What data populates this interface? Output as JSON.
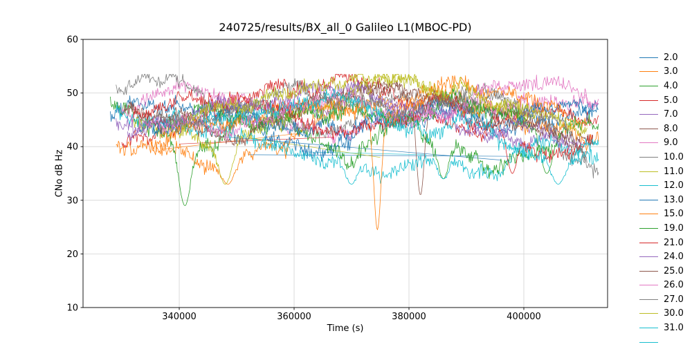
{
  "chart_data": {
    "type": "line",
    "title": "240725/results/BX_all_0 Galileo L1(MBOC-PD)",
    "xlabel": "Time (s)",
    "ylabel": "CNo dB Hz",
    "xlim": [
      323250,
      414580
    ],
    "ylim": [
      10,
      60
    ],
    "xticks": [
      340000,
      360000,
      380000,
      400000
    ],
    "yticks": [
      10,
      20,
      30,
      40,
      50,
      60
    ],
    "grid": true,
    "grid_color": "#d2d2d2",
    "axis_color": "#000000",
    "legend_position": "right-outside",
    "legend_partial_color": "#17becf",
    "series": [
      {
        "name": "2.0",
        "color": "#1f77b4",
        "x0": 328000,
        "x1": 413000,
        "noise": 1.6,
        "keypoints": [
          46,
          47,
          45,
          43,
          40,
          43,
          46,
          45,
          43,
          46
        ]
      },
      {
        "name": "3.0",
        "color": "#ff7f0e",
        "x0": 329000,
        "x1": 413000,
        "noise": 1.5,
        "keypoints": [
          41,
          39,
          37,
          40,
          44,
          47,
          49,
          47,
          44,
          42
        ],
        "dips": [
          [
            348500,
            33,
            1600
          ]
        ]
      },
      {
        "name": "4.0",
        "color": "#2ca02c",
        "x0": 328000,
        "x1": 405000,
        "noise": 1.8,
        "keypoints": [
          49,
          44,
          40,
          46,
          42,
          38,
          45,
          40,
          36,
          38
        ],
        "dips": [
          [
            341000,
            29,
            1500
          ],
          [
            386000,
            34,
            1200
          ]
        ]
      },
      {
        "name": "5.0",
        "color": "#d62728",
        "x0": 330000,
        "x1": 413000,
        "noise": 1.5,
        "keypoints": [
          40,
          42,
          46,
          50,
          52,
          50,
          46,
          43,
          46,
          44
        ]
      },
      {
        "name": "7.0",
        "color": "#9467bd",
        "x0": 329000,
        "x1": 410000,
        "noise": 1.4,
        "keypoints": [
          44,
          46,
          47,
          45,
          48,
          50,
          48,
          45,
          42,
          40
        ]
      },
      {
        "name": "8.0",
        "color": "#8c564b",
        "x0": 331000,
        "x1": 411000,
        "noise": 1.4,
        "keypoints": [
          48,
          46,
          44,
          47,
          50,
          52,
          50,
          48,
          43,
          39
        ],
        "dips": [
          [
            382000,
            31,
            1000
          ]
        ]
      },
      {
        "name": "9.0",
        "color": "#e377c2",
        "x0": 330000,
        "x1": 413000,
        "noise": 1.5,
        "keypoints": [
          47,
          50,
          48,
          45,
          43,
          46,
          44,
          47,
          50,
          48
        ]
      },
      {
        "name": "10.0",
        "color": "#7f7f7f",
        "x0": 329000,
        "x1": 411000,
        "noise": 1.4,
        "keypoints": [
          51,
          52,
          49,
          46,
          44,
          47,
          49,
          50,
          47,
          36
        ]
      },
      {
        "name": "11.0",
        "color": "#bcbd22",
        "x0": 332000,
        "x1": 402000,
        "noise": 1.5,
        "keypoints": [
          45,
          42,
          38,
          44,
          47,
          50,
          52,
          49,
          46,
          44
        ],
        "dips": [
          [
            348000,
            33,
            1500
          ]
        ]
      },
      {
        "name": "12.0",
        "color": "#17becf",
        "x0": 329000,
        "x1": 413000,
        "noise": 1.6,
        "keypoints": [
          47,
          46,
          43,
          40,
          37,
          36,
          38,
          36,
          41,
          38
        ],
        "dips": [
          [
            370000,
            33,
            1300
          ],
          [
            386000,
            34,
            1100
          ]
        ]
      },
      {
        "name": "13.0",
        "color": "#1f77b4",
        "x0": 333000,
        "x1": 413000,
        "noise": 1.4,
        "keypoints": [
          43,
          45,
          47,
          44,
          42,
          45,
          47,
          44,
          46,
          47
        ]
      },
      {
        "name": "15.0",
        "color": "#ff7f0e",
        "x0": 335000,
        "x1": 411000,
        "noise": 1.5,
        "keypoints": [
          41,
          44,
          46,
          48,
          49,
          47,
          51,
          49,
          47,
          45
        ],
        "dips": [
          [
            374500,
            24.5,
            900
          ]
        ]
      },
      {
        "name": "19.0",
        "color": "#2ca02c",
        "x0": 338000,
        "x1": 413000,
        "noise": 1.6,
        "keypoints": [
          44,
          46,
          43,
          46,
          48,
          45,
          50,
          47,
          42,
          43
        ],
        "dips": [
          [
            404000,
            35,
            1500
          ]
        ]
      },
      {
        "name": "21.0",
        "color": "#d62728",
        "x0": 332000,
        "x1": 412000,
        "noise": 1.5,
        "keypoints": [
          46,
          48,
          50,
          47,
          44,
          46,
          48,
          44,
          40,
          41
        ],
        "dips": [
          [
            398000,
            35,
            1300
          ]
        ]
      },
      {
        "name": "24.0",
        "color": "#9467bd",
        "x0": 331000,
        "x1": 409000,
        "noise": 1.4,
        "keypoints": [
          42,
          44,
          47,
          49,
          51,
          49,
          46,
          43,
          45,
          42
        ]
      },
      {
        "name": "25.0",
        "color": "#8c564b",
        "x0": 330000,
        "x1": 412000,
        "noise": 1.3,
        "keypoints": [
          46,
          44,
          42,
          45,
          48,
          50,
          48,
          46,
          44,
          42
        ]
      },
      {
        "name": "26.0",
        "color": "#e377c2",
        "x0": 333000,
        "x1": 413000,
        "noise": 1.5,
        "keypoints": [
          44,
          46,
          43,
          46,
          48,
          45,
          47,
          50,
          51,
          48
        ]
      },
      {
        "name": "27.0",
        "color": "#7f7f7f",
        "x0": 336000,
        "x1": 413000,
        "noise": 1.4,
        "keypoints": [
          47,
          45,
          48,
          50,
          47,
          45,
          47,
          48,
          44,
          37
        ]
      },
      {
        "name": "30.0",
        "color": "#bcbd22",
        "x0": 340000,
        "x1": 411000,
        "noise": 1.4,
        "keypoints": [
          43,
          46,
          48,
          50,
          52,
          53,
          51,
          48,
          45,
          42
        ]
      },
      {
        "name": "31.0",
        "color": "#17becf",
        "x0": 344000,
        "x1": 413000,
        "noise": 1.5,
        "keypoints": [
          46,
          44,
          46,
          48,
          45,
          43,
          45,
          41,
          38,
          39
        ],
        "dips": [
          [
            406000,
            33,
            1800
          ]
        ]
      }
    ],
    "connector_lines": [
      {
        "color": "#ff7f0e",
        "points": [
          [
            337000,
            39.5
          ],
          [
            361000,
            42.5
          ]
        ]
      },
      {
        "color": "#1f77b4",
        "points": [
          [
            346000,
            42
          ],
          [
            396000,
            37.5
          ]
        ]
      },
      {
        "color": "#1f77b4",
        "points": [
          [
            352000,
            38.5
          ],
          [
            398000,
            38.2
          ]
        ]
      },
      {
        "color": "#d62728",
        "points": [
          [
            340000,
            40.5
          ],
          [
            367000,
            41.8
          ]
        ]
      },
      {
        "color": "#bcbd22",
        "points": [
          [
            350000,
            42
          ],
          [
            375000,
            38
          ]
        ]
      },
      {
        "color": "#17becf",
        "points": [
          [
            362000,
            39
          ],
          [
            383000,
            38.5
          ]
        ]
      }
    ]
  }
}
